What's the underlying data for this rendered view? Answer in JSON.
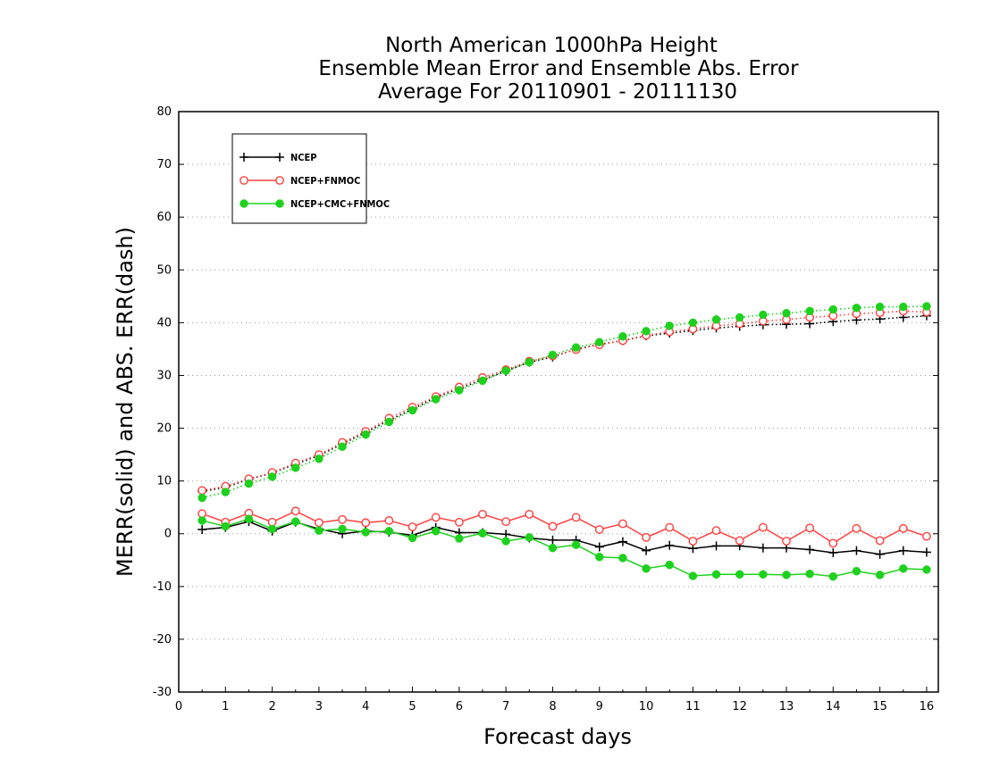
{
  "chart_data": {
    "type": "line",
    "title": [
      "North American 1000hPa Height",
      "Ensemble Mean Error and Ensemble Abs. Error",
      "Average For 20110901 - 20111130"
    ],
    "xlabel": "Forecast days",
    "ylabel": "MERR(solid) and ABS. ERR(dash)",
    "xlim": [
      0,
      16.25
    ],
    "ylim": [
      -30,
      80
    ],
    "xticks": [
      0,
      1,
      2,
      3,
      4,
      5,
      6,
      7,
      8,
      9,
      10,
      11,
      12,
      13,
      14,
      15,
      16
    ],
    "yticks": [
      -30,
      -20,
      -10,
      0,
      10,
      20,
      30,
      40,
      50,
      60,
      70,
      80
    ],
    "grid": "horizontal-dotted",
    "legend_position": "top-left",
    "x": [
      0.5,
      1,
      1.5,
      2,
      2.5,
      3,
      3.5,
      4,
      4.5,
      5,
      5.5,
      6,
      6.5,
      7,
      7.5,
      8,
      8.5,
      9,
      9.5,
      10,
      10.5,
      11,
      11.5,
      12,
      12.5,
      13,
      13.5,
      14,
      14.5,
      15,
      15.5,
      16
    ],
    "series": [
      {
        "name": "NCEP",
        "color": "#000000",
        "marker": "plus",
        "merr": [
          0.8,
          1.2,
          2.3,
          0.5,
          2.2,
          0.9,
          0.0,
          0.5,
          0.3,
          -0.3,
          1.2,
          0.2,
          0.2,
          -0.1,
          -0.8,
          -1.2,
          -1.2,
          -2.5,
          -1.5,
          -3.2,
          -2.2,
          -2.8,
          -2.3,
          -2.3,
          -2.7,
          -2.7,
          -3.0,
          -3.6,
          -3.2,
          -3.9,
          -3.2,
          -3.5
        ],
        "abs_err": [
          8.0,
          8.8,
          10.3,
          11.5,
          13.2,
          14.8,
          17.0,
          19.2,
          21.5,
          23.6,
          25.8,
          27.5,
          29.2,
          30.8,
          32.5,
          33.5,
          35.0,
          35.9,
          36.6,
          37.5,
          38.0,
          38.5,
          39.0,
          39.3,
          39.6,
          39.7,
          39.8,
          40.2,
          40.5,
          40.7,
          41.0,
          41.3
        ]
      },
      {
        "name": "NCEP+FNMOC",
        "color": "#ff4040",
        "marker": "open-circle",
        "merr": [
          3.8,
          2.2,
          3.9,
          2.2,
          4.3,
          2.1,
          2.7,
          2.1,
          2.5,
          1.3,
          3.1,
          2.2,
          3.7,
          2.3,
          3.7,
          1.4,
          3.1,
          0.8,
          1.9,
          -0.7,
          1.2,
          -1.4,
          0.6,
          -1.3,
          1.2,
          -1.4,
          1.1,
          -1.8,
          1.0,
          -1.3,
          1.0,
          -0.5
        ],
        "abs_err": [
          8.2,
          9.0,
          10.4,
          11.6,
          13.4,
          15.0,
          17.3,
          19.4,
          21.9,
          24.0,
          26.0,
          27.8,
          29.6,
          31.1,
          32.7,
          33.7,
          34.9,
          35.8,
          36.6,
          37.6,
          38.3,
          38.8,
          39.4,
          39.8,
          40.3,
          40.6,
          41.0,
          41.3,
          41.7,
          41.9,
          42.2,
          42.0
        ]
      },
      {
        "name": "NCEP+CMC+FNMOC",
        "color": "#1ed11e",
        "marker": "filled-circle",
        "merr": [
          2.5,
          1.4,
          2.8,
          0.9,
          2.3,
          0.6,
          0.9,
          0.3,
          0.5,
          -0.8,
          0.5,
          -0.9,
          0.1,
          -1.4,
          -0.7,
          -2.7,
          -2.1,
          -4.4,
          -4.6,
          -6.6,
          -5.9,
          -8.0,
          -7.7,
          -7.7,
          -7.7,
          -7.8,
          -7.6,
          -8.1,
          -7.1,
          -7.8,
          -6.6,
          -6.8
        ],
        "abs_err": [
          6.8,
          7.9,
          9.5,
          10.8,
          12.5,
          14.2,
          16.5,
          18.8,
          21.2,
          23.4,
          25.5,
          27.2,
          29.0,
          30.9,
          32.5,
          33.9,
          35.3,
          36.3,
          37.4,
          38.4,
          39.4,
          40.0,
          40.6,
          41.0,
          41.5,
          41.8,
          42.2,
          42.5,
          42.8,
          43.0,
          43.0,
          43.1
        ]
      }
    ]
  }
}
